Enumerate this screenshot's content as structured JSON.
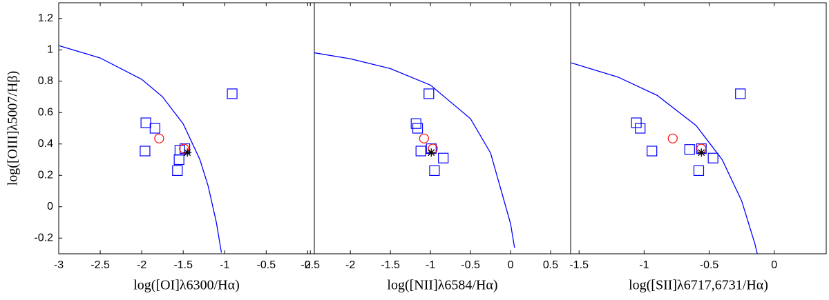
{
  "chart_data": [
    {
      "type": "scatter",
      "xlabel": "log([OI]λ6300/Hα)",
      "ylabel": "log([OIII]λ5007/Hβ)",
      "xlim": [
        -3,
        0.08
      ],
      "ylim": [
        -0.3,
        1.3
      ],
      "xticks": [
        -3,
        -2.5,
        -2,
        -1.5,
        -1,
        -0.5,
        0
      ],
      "yticks": [
        -0.2,
        0,
        0.2,
        0.4,
        0.6,
        0.8,
        1,
        1.2
      ],
      "series": [
        {
          "marker": "line",
          "color": "#0000ff",
          "x": [
            -3,
            -2.5,
            -2,
            -1.75,
            -1.5,
            -1.3,
            -1.2,
            -1.1,
            -1.04
          ],
          "values": [
            1.027,
            0.948,
            0.812,
            0.701,
            0.528,
            0.302,
            0.133,
            -0.101,
            -0.292
          ]
        },
        {
          "marker": "square",
          "color": "#0000ff",
          "x": [
            -1.95,
            -1.84,
            -1.96,
            -1.54,
            -1.55,
            -1.57,
            -1.48,
            -0.91
          ],
          "values": [
            0.535,
            0.5,
            0.355,
            0.36,
            0.3,
            0.23,
            0.37,
            0.72
          ]
        },
        {
          "marker": "circle",
          "color": "#ff0000",
          "x": [
            -1.79,
            -1.49
          ],
          "values": [
            0.435,
            0.37
          ]
        },
        {
          "marker": "star",
          "color": "#000000",
          "x": [
            -1.45
          ],
          "values": [
            0.345
          ]
        }
      ]
    },
    {
      "type": "scatter",
      "xlabel": "log([NII]λ6584/Hα)",
      "xlim": [
        -2.45,
        0.75
      ],
      "ylim": [
        -0.3,
        1.3
      ],
      "xticks": [
        -2.5,
        -2,
        -1.5,
        -1,
        -0.5,
        0,
        0.5
      ],
      "series": [
        {
          "marker": "line",
          "color": "#0000ff",
          "x": [
            -2.45,
            -2,
            -1.5,
            -1,
            -0.5,
            -0.25,
            0,
            0.05
          ],
          "values": [
            0.981,
            0.943,
            0.88,
            0.775,
            0.561,
            0.343,
            -0.108,
            -0.262
          ]
        },
        {
          "marker": "square",
          "color": "#0000ff",
          "x": [
            -1.18,
            -1.16,
            -1.12,
            -1.02,
            -0.99,
            -0.84,
            -0.95
          ],
          "values": [
            0.53,
            0.5,
            0.355,
            0.72,
            0.37,
            0.31,
            0.23
          ]
        },
        {
          "marker": "circle",
          "color": "#ff0000",
          "x": [
            -1.08,
            -0.97
          ],
          "values": [
            0.435,
            0.37
          ]
        },
        {
          "marker": "star",
          "color": "#000000",
          "x": [
            -0.99
          ],
          "values": [
            0.345
          ]
        }
      ]
    },
    {
      "type": "scatter",
      "xlabel": "log([SII]λ6717,6731/Hα)",
      "xlim": [
        -1.565,
        0.4
      ],
      "ylim": [
        -0.3,
        1.3
      ],
      "xticks": [
        -1.5,
        -1,
        -0.5,
        0
      ],
      "series": [
        {
          "marker": "line",
          "color": "#0000ff",
          "x": [
            -1.56,
            -1.2,
            -0.9,
            -0.6,
            -0.4,
            -0.25,
            -0.15,
            -0.13
          ],
          "values": [
            0.917,
            0.826,
            0.71,
            0.517,
            0.3,
            0.037,
            -0.232,
            -0.3
          ]
        },
        {
          "marker": "square",
          "color": "#0000ff",
          "x": [
            -1.06,
            -1.03,
            -0.94,
            -0.26,
            -0.65,
            -0.47,
            -0.58,
            -0.56
          ],
          "values": [
            0.535,
            0.5,
            0.355,
            0.72,
            0.365,
            0.31,
            0.23,
            0.37
          ]
        },
        {
          "marker": "circle",
          "color": "#ff0000",
          "x": [
            -0.78,
            -0.56
          ],
          "values": [
            0.435,
            0.37
          ]
        },
        {
          "marker": "star",
          "color": "#000000",
          "x": [
            -0.56
          ],
          "values": [
            0.345
          ]
        }
      ]
    }
  ]
}
